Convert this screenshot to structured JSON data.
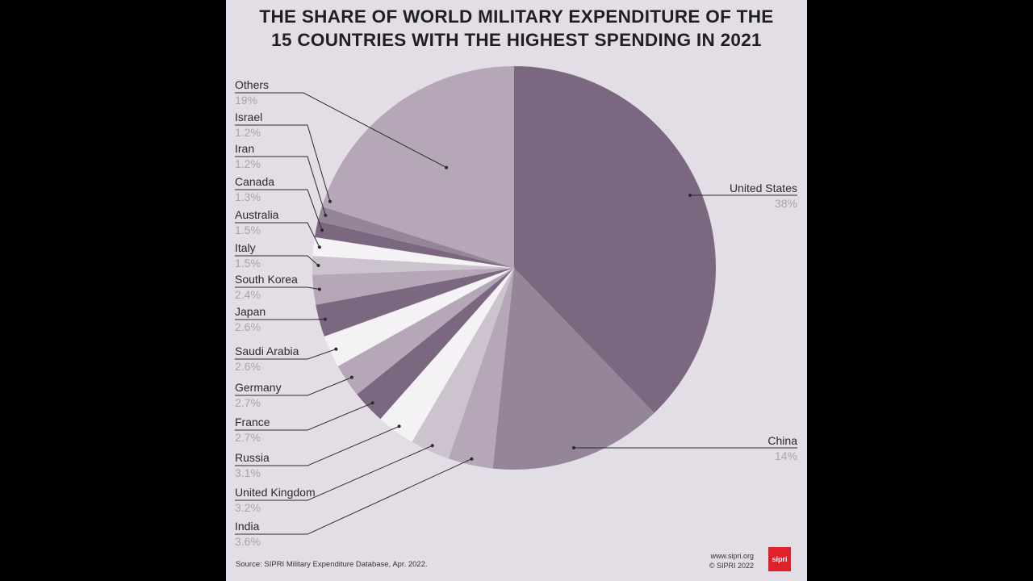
{
  "title_lines": [
    "THE SHARE OF WORLD MILITARY EXPENDITURE OF THE",
    "15 COUNTRIES WITH THE HIGHEST SPENDING IN 2021"
  ],
  "source": "Source: SIPRI Military Expenditure Database, Apr. 2022.",
  "credit": {
    "url": "www.sipri.org",
    "copyright": "© SIPRI 2022"
  },
  "logo_text": "sipri",
  "colors": {
    "background": "#e3dee5",
    "dark": "#7b6880",
    "medium": "#958599",
    "light": "#b5a7b8",
    "pale": "#cdc3cf",
    "white": "#f4f2f5",
    "logo": "#e0202a"
  },
  "chart_data": {
    "type": "pie",
    "title": "THE SHARE OF WORLD MILITARY EXPENDITURE OF THE 15 COUNTRIES WITH THE HIGHEST SPENDING IN 2021",
    "units": "%",
    "slices": [
      {
        "name": "United States",
        "value": 38,
        "label": "38%",
        "color": "#7b6880"
      },
      {
        "name": "China",
        "value": 14,
        "label": "14%",
        "color": "#958599"
      },
      {
        "name": "India",
        "value": 3.6,
        "label": "3.6%",
        "color": "#b5a7b8"
      },
      {
        "name": "United Kingdom",
        "value": 3.2,
        "label": "3.2%",
        "color": "#cdc3cf"
      },
      {
        "name": "Russia",
        "value": 3.1,
        "label": "3.1%",
        "color": "#f4f2f5"
      },
      {
        "name": "France",
        "value": 2.7,
        "label": "2.7%",
        "color": "#7b6880"
      },
      {
        "name": "Germany",
        "value": 2.7,
        "label": "2.7%",
        "color": "#b5a7b8"
      },
      {
        "name": "Saudi Arabia",
        "value": 2.6,
        "label": "2.6%",
        "color": "#f4f2f5"
      },
      {
        "name": "Japan",
        "value": 2.6,
        "label": "2.6%",
        "color": "#7b6880"
      },
      {
        "name": "South Korea",
        "value": 2.4,
        "label": "2.4%",
        "color": "#b5a7b8"
      },
      {
        "name": "Italy",
        "value": 1.5,
        "label": "1.5%",
        "color": "#cdc3cf"
      },
      {
        "name": "Australia",
        "value": 1.5,
        "label": "1.5%",
        "color": "#f4f2f5"
      },
      {
        "name": "Canada",
        "value": 1.3,
        "label": "1.3%",
        "color": "#7b6880"
      },
      {
        "name": "Iran",
        "value": 1.2,
        "label": "1.2%",
        "color": "#958599"
      },
      {
        "name": "Israel",
        "value": 1.2,
        "label": "1.2%",
        "color": "#b5a7b8"
      },
      {
        "name": "Others",
        "value": 19,
        "label": "19%",
        "color": "#b5a7b8"
      }
    ]
  }
}
